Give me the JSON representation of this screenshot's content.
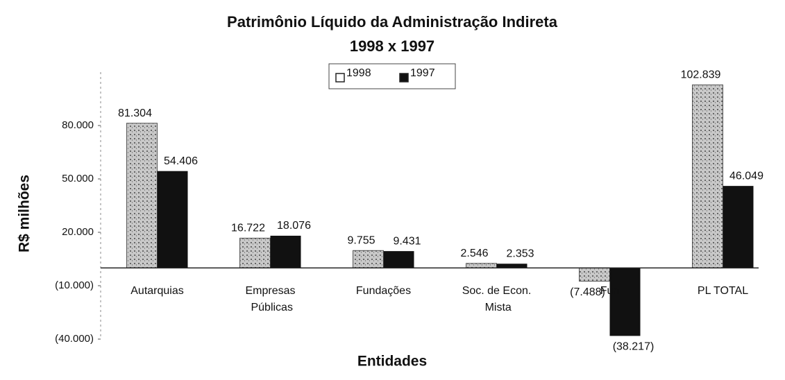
{
  "chart_data": {
    "type": "bar",
    "title": "Patrimônio Líquido da Administração Indireta",
    "subtitle": "1998 x 1997",
    "y_label": "R$ milhões",
    "x_label": "Entidades",
    "categories": [
      "Autarquias",
      "Empresas Públicas",
      "Fundações",
      "Soc. de Econ. Mista",
      "Fun",
      "PL TOTAL"
    ],
    "series": [
      {
        "name": "1998",
        "color": "#b8b8b8",
        "values": [
          81304,
          16722,
          9755,
          2546,
          -7488,
          102839
        ],
        "value_labels": [
          "81.304",
          "16.722",
          "9.755",
          "2.546",
          "(7.488)",
          "102.839"
        ]
      },
      {
        "name": "1997",
        "color": "#111111",
        "values": [
          54406,
          18076,
          9431,
          2353,
          -38217,
          46049
        ],
        "value_labels": [
          "54.406",
          "18.076",
          "9.431",
          "2.353",
          "(38.217)",
          "46.049"
        ]
      }
    ],
    "ylim": [
      -40000,
      110000
    ],
    "yticks": [
      {
        "value": -40000,
        "label": "(40.000)"
      },
      {
        "value": -10000,
        "label": "(10.000)"
      },
      {
        "value": 20000,
        "label": "20.000"
      },
      {
        "value": 50000,
        "label": "50.000"
      },
      {
        "value": 80000,
        "label": "80.000"
      }
    ],
    "grid": false
  }
}
